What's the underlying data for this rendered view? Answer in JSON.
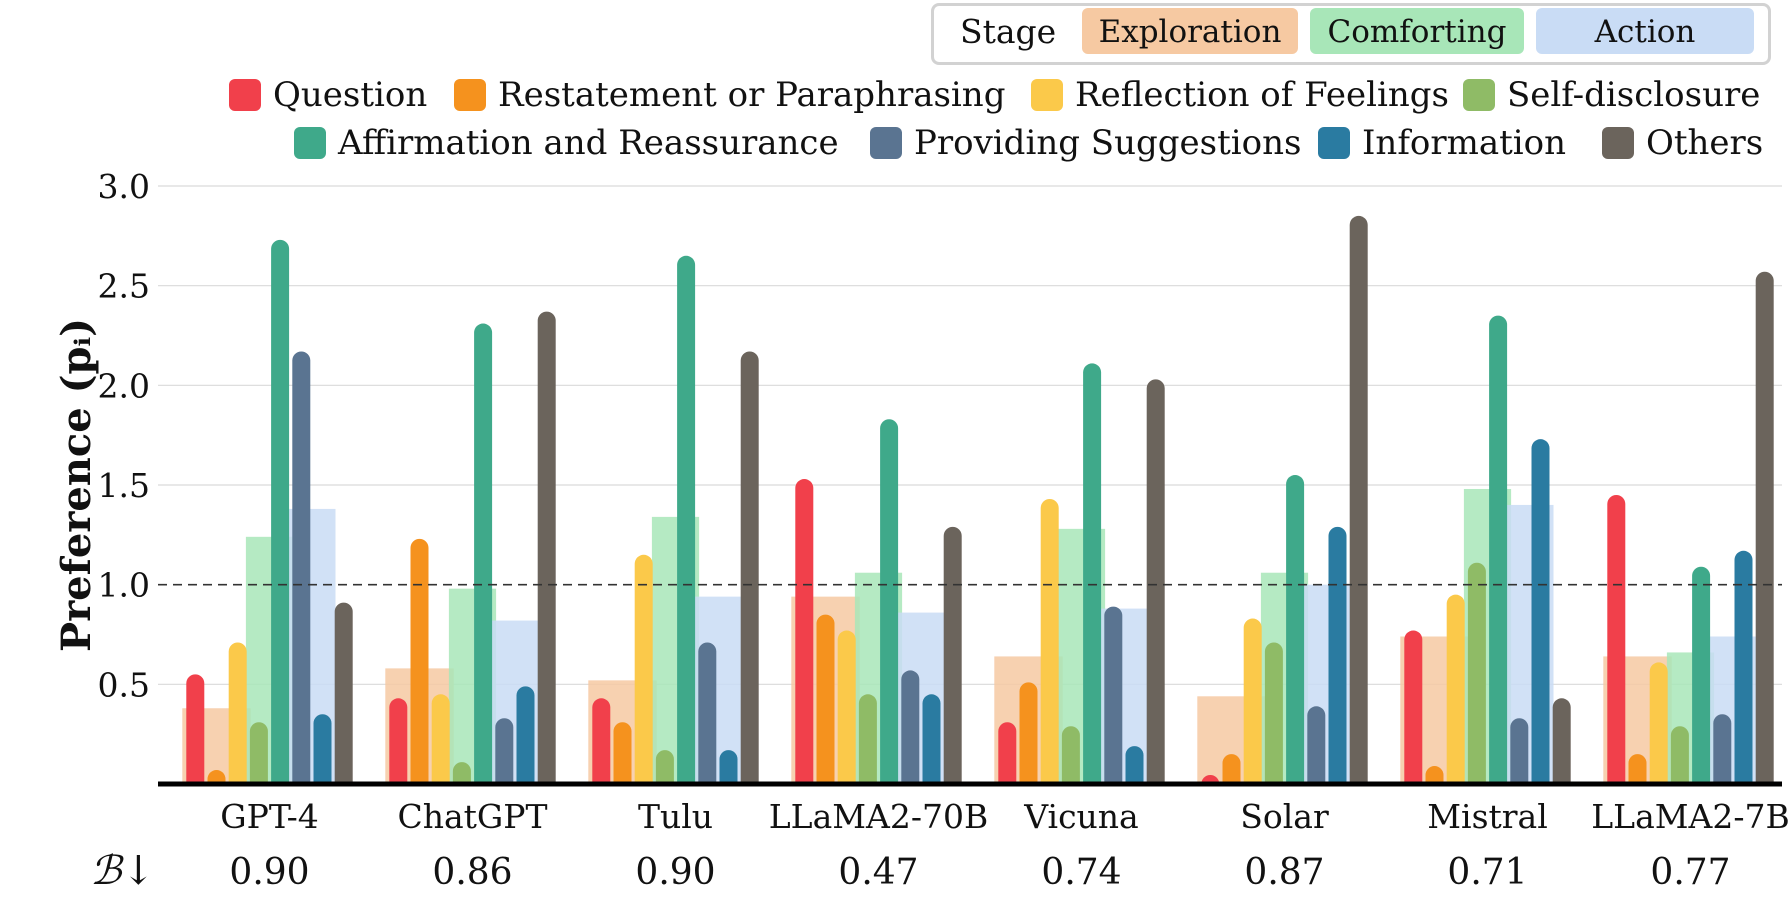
{
  "chart_data": {
    "type": "bar",
    "ylabel": "Preference (pᵢ)",
    "ylim": [
      0,
      3.0
    ],
    "yticks": [
      0.5,
      1.0,
      1.5,
      2.0,
      2.5,
      3.0
    ],
    "ytick_labels": [
      "0.5",
      "1.0",
      "1.5",
      "2.0",
      "2.5",
      "3.0"
    ],
    "reference_line": 1.0,
    "categories": [
      "GPT-4",
      "ChatGPT",
      "Tulu",
      "LLaMA2-70B",
      "Vicuna",
      "Solar",
      "Mistral",
      "LLaMA2-7B"
    ],
    "b_label": "ℬ↓",
    "b_values": [
      "0.90",
      "0.86",
      "0.90",
      "0.47",
      "0.74",
      "0.87",
      "0.71",
      "0.77"
    ],
    "stage_title": "Stage",
    "stages": [
      {
        "name": "Exploration",
        "color": "#f6c9a2",
        "values": [
          0.38,
          0.58,
          0.52,
          0.94,
          0.64,
          0.44,
          0.74,
          0.64
        ]
      },
      {
        "name": "Comforting",
        "color": "#a8e6b8",
        "values": [
          1.24,
          0.98,
          1.34,
          1.06,
          1.28,
          1.06,
          1.48,
          0.66
        ]
      },
      {
        "name": "Action",
        "color": "#c9dcf5",
        "values": [
          1.38,
          0.82,
          0.94,
          0.86,
          0.88,
          1.0,
          1.4,
          0.74
        ]
      }
    ],
    "series": [
      {
        "name": "Question",
        "color": "#f1404b",
        "values": [
          0.55,
          0.43,
          0.43,
          1.53,
          0.31,
          0.03,
          0.77,
          1.45
        ]
      },
      {
        "name": "Restatement or Paraphrasing",
        "color": "#f5921e",
        "values": [
          0.07,
          1.23,
          0.31,
          0.85,
          0.51,
          0.15,
          0.09,
          0.15
        ]
      },
      {
        "name": "Reflection of Feelings",
        "color": "#fbc94a",
        "values": [
          0.71,
          0.45,
          1.15,
          0.77,
          1.43,
          0.83,
          0.95,
          0.61
        ]
      },
      {
        "name": "Self-disclosure",
        "color": "#8fbb66",
        "values": [
          0.31,
          0.11,
          0.17,
          0.45,
          0.29,
          0.71,
          1.11,
          0.29
        ]
      },
      {
        "name": "Affirmation and Reassurance",
        "color": "#3fa98a",
        "values": [
          2.73,
          2.31,
          2.65,
          1.83,
          2.11,
          1.55,
          2.35,
          1.09
        ]
      },
      {
        "name": "Providing Suggestions",
        "color": "#5a7491",
        "values": [
          2.17,
          0.33,
          0.71,
          0.57,
          0.89,
          0.39,
          0.33,
          0.35
        ]
      },
      {
        "name": "Information",
        "color": "#2a7ba1",
        "values": [
          0.35,
          0.49,
          0.17,
          0.45,
          0.19,
          1.29,
          1.73,
          1.17
        ]
      },
      {
        "name": "Others",
        "color": "#6b645c",
        "values": [
          0.91,
          2.37,
          2.17,
          1.29,
          2.03,
          2.85,
          0.43,
          2.57
        ]
      }
    ]
  }
}
